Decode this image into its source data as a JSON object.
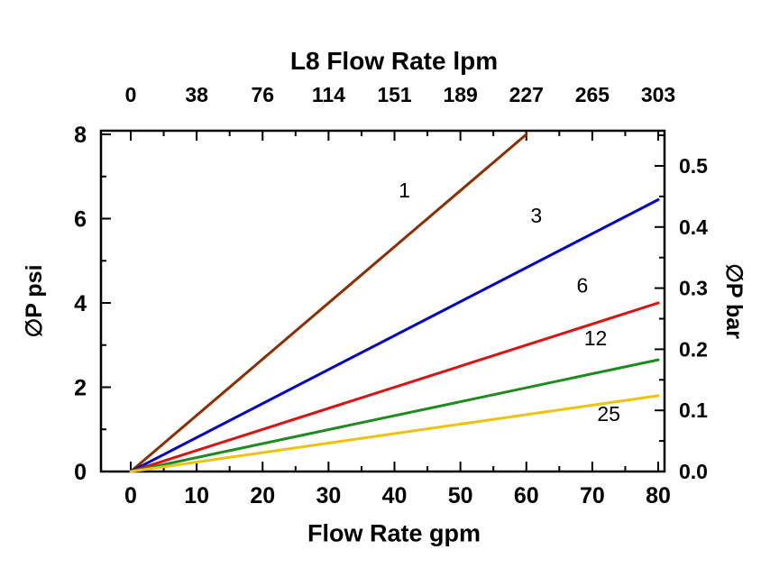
{
  "chart_data": {
    "type": "line",
    "title": "L8 Flow Rate lpm",
    "xlabel": "Flow Rate gpm",
    "ylabel_left": "∅P psi",
    "ylabel_right": "∅P bar",
    "x_range": [
      0,
      80
    ],
    "y_range": [
      0,
      8
    ],
    "grid": false,
    "x_ticks": [
      0,
      10,
      20,
      30,
      40,
      50,
      60,
      70,
      80
    ],
    "x_minor_ticks": [
      5,
      15,
      25,
      35,
      45,
      55,
      65,
      75
    ],
    "y_ticks": [
      0,
      2,
      4,
      6,
      8
    ],
    "y_minor_ticks": [
      1,
      3,
      5,
      7
    ],
    "top_axis": {
      "tick_labels": [
        "0",
        "38",
        "76",
        "114",
        "151",
        "189",
        "227",
        "265",
        "303"
      ],
      "positions_gpm": [
        0,
        10,
        20,
        30,
        40,
        50,
        60,
        70,
        80
      ]
    },
    "right_axis": {
      "tick_labels": [
        "0.0",
        "0.1",
        "0.2",
        "0.3",
        "0.4",
        "0.5"
      ],
      "tick_values_bar": [
        0.0,
        0.1,
        0.2,
        0.3,
        0.4,
        0.5
      ],
      "minor_values_bar": [
        0.05,
        0.15,
        0.25,
        0.35,
        0.45,
        0.55
      ],
      "psi_per_bar": 14.5038
    },
    "series": [
      {
        "name": "1",
        "color": "#8B2F00",
        "points": [
          [
            0,
            0
          ],
          [
            60,
            8.0
          ]
        ],
        "label_at": [
          41.5,
          6.5
        ]
      },
      {
        "name": "3",
        "color": "#0000CC",
        "points": [
          [
            0,
            0
          ],
          [
            80,
            6.45
          ]
        ],
        "label_at": [
          61.5,
          5.9
        ]
      },
      {
        "name": "6",
        "color": "#E01010",
        "points": [
          [
            0,
            0
          ],
          [
            80,
            4.0
          ]
        ],
        "label_at": [
          68.5,
          4.25
        ]
      },
      {
        "name": "12",
        "color": "#1E8B1E",
        "points": [
          [
            0,
            0
          ],
          [
            80,
            2.65
          ]
        ],
        "label_at": [
          70.5,
          3.0
        ]
      },
      {
        "name": "25",
        "color": "#ECC30E",
        "points": [
          [
            0,
            0
          ],
          [
            80,
            1.8
          ]
        ],
        "label_at": [
          72.5,
          1.2
        ]
      }
    ]
  }
}
